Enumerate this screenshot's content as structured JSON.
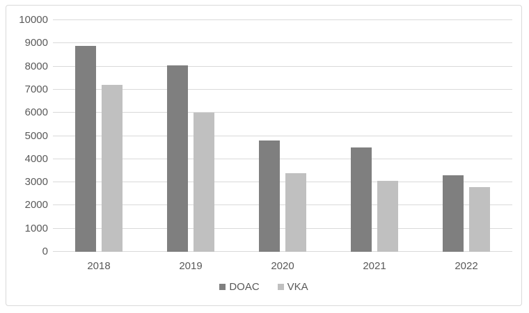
{
  "chart_data": {
    "type": "bar",
    "title": "",
    "xlabel": "",
    "ylabel": "",
    "categories": [
      "2018",
      "2019",
      "2020",
      "2021",
      "2022"
    ],
    "series": [
      {
        "name": "DOAC",
        "color": "#7f7f7f",
        "values": [
          8900,
          8050,
          4800,
          4500,
          3300
        ]
      },
      {
        "name": "VKA",
        "color": "#c0c0c0",
        "values": [
          7200,
          6000,
          3400,
          3050,
          2800
        ]
      }
    ],
    "ylim": [
      0,
      10000
    ],
    "yticks": [
      0,
      1000,
      2000,
      3000,
      4000,
      5000,
      6000,
      7000,
      8000,
      9000,
      10000
    ],
    "grid": true,
    "legend_position": "bottom"
  },
  "colors": {
    "gridline": "#d9d9d9",
    "frame_border": "#d9d9d9",
    "tick_text": "#595959",
    "background": "#ffffff"
  }
}
